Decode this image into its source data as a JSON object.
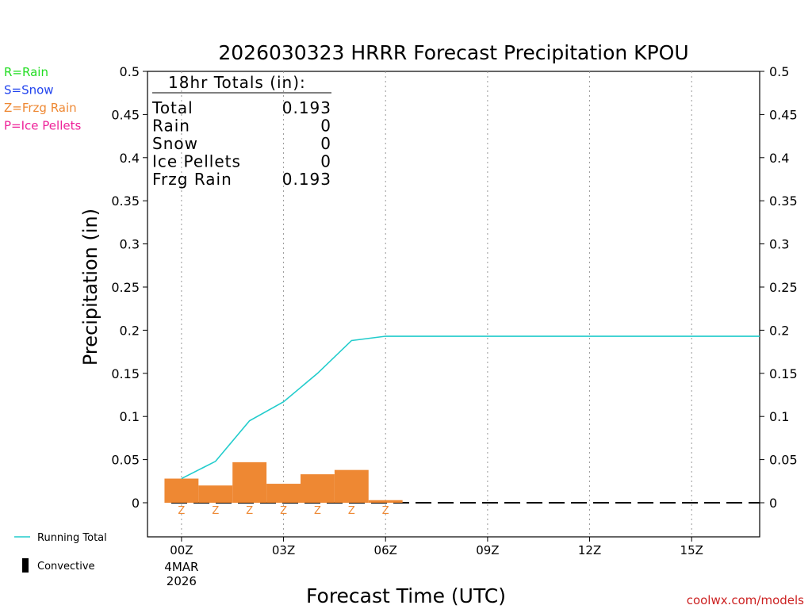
{
  "chart_data": {
    "type": "bar",
    "title": "2026030323 HRRR Forecast Precipitation KPOU",
    "xlabel": "Forecast Time (UTC)",
    "ylabel": "Precipitation (in)",
    "ylim": [
      -0.04,
      0.5
    ],
    "xlim_hours": [
      -1,
      17
    ],
    "y_ticks": [
      "0",
      "0.05",
      "0.1",
      "0.15",
      "0.2",
      "0.25",
      "0.3",
      "0.35",
      "0.4",
      "0.45",
      "0.5"
    ],
    "x_ticks": [
      {
        "hour": 0,
        "label": "00Z"
      },
      {
        "hour": 3,
        "label": "03Z"
      },
      {
        "hour": 6,
        "label": "06Z"
      },
      {
        "hour": 9,
        "label": "09Z"
      },
      {
        "hour": 12,
        "label": "12Z"
      },
      {
        "hour": 15,
        "label": "15Z"
      }
    ],
    "x_date_label": [
      "4MAR",
      "2026"
    ],
    "legend_types": [
      {
        "text": "R=Rain",
        "color": "#22dd22"
      },
      {
        "text": "S=Snow",
        "color": "#2244ee"
      },
      {
        "text": "Z=Frzg Rain",
        "color": "#ee8833"
      },
      {
        "text": "P=Ice Pellets",
        "color": "#ee2299"
      }
    ],
    "legend_lines": [
      {
        "text": "Running Total",
        "color": "#22cccc"
      },
      {
        "text": "Convective",
        "color": "#000000"
      }
    ],
    "totals": {
      "heading": "18hr Totals (in):",
      "rows": [
        {
          "label": "Total",
          "value": "0.193"
        },
        {
          "label": "Rain",
          "value": "0"
        },
        {
          "label": "Snow",
          "value": "0"
        },
        {
          "label": "Ice Pellets",
          "value": "0"
        },
        {
          "label": "Frzg Rain",
          "value": "0.193"
        }
      ]
    },
    "series": [
      {
        "name": "Hourly Frzg Rain",
        "color": "#ee8833",
        "hours": [
          0,
          1,
          2,
          3,
          4,
          5,
          6
        ],
        "values": [
          0.028,
          0.02,
          0.047,
          0.022,
          0.033,
          0.038,
          0.003
        ],
        "ptype": [
          "Z",
          "Z",
          "Z",
          "Z",
          "Z",
          "Z",
          "Z"
        ]
      },
      {
        "name": "Running Total",
        "color": "#22cccc",
        "hours": [
          0,
          1,
          2,
          3,
          4,
          5,
          6,
          7,
          8,
          9,
          10,
          11,
          12,
          13,
          14,
          15,
          16,
          17
        ],
        "values": [
          0.028,
          0.048,
          0.095,
          0.117,
          0.15,
          0.188,
          0.193,
          0.193,
          0.193,
          0.193,
          0.193,
          0.193,
          0.193,
          0.193,
          0.193,
          0.193,
          0.193,
          0.193
        ]
      }
    ],
    "credit": "coolwx.com/models"
  }
}
